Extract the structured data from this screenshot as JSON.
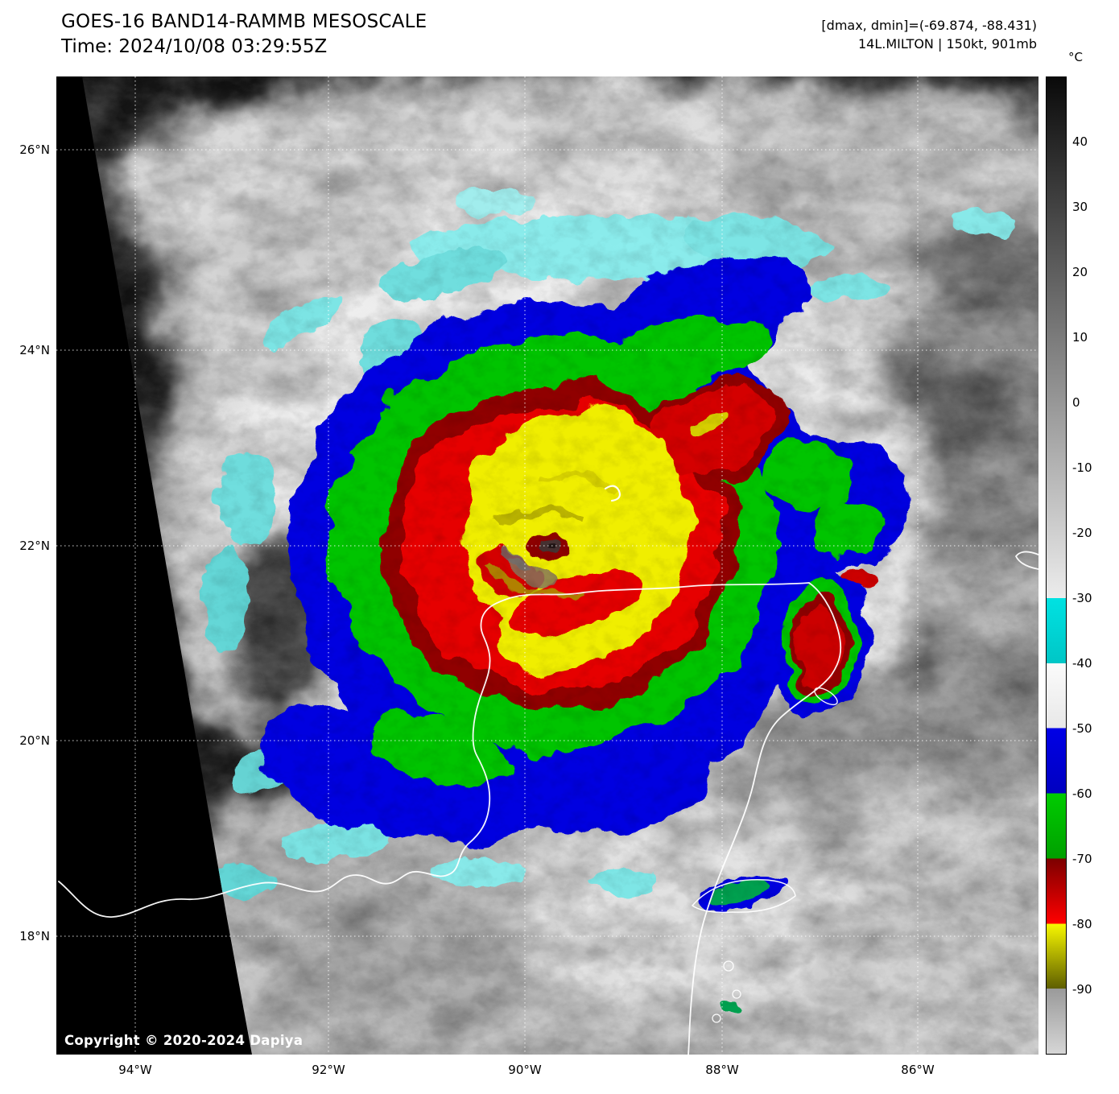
{
  "header": {
    "title": "GOES-16 BAND14-RAMMB MESOSCALE",
    "time_label": "Time: 2024/10/08 03:29:55Z",
    "dmax_dmin": "[dmax, dmin]=(-69.874, -88.431)",
    "storm_info": "14L.MILTON | 150kt, 901mb"
  },
  "map": {
    "lat_labels": [
      "26°N",
      "24°N",
      "22°N",
      "20°N",
      "18°N"
    ],
    "lon_labels": [
      "94°W",
      "92°W",
      "90°W",
      "88°W",
      "86°W"
    ],
    "copyright": "Copyright © 2020-2024 Dapiya"
  },
  "colorbar": {
    "unit": "°C",
    "range": [
      50,
      -100
    ],
    "ticks": [
      40,
      30,
      20,
      10,
      0,
      -10,
      -20,
      -30,
      -40,
      -50,
      -60,
      -70,
      -80,
      -90
    ],
    "segments": [
      {
        "from": 50,
        "to": -30,
        "color_top": "#0a0a0a",
        "color_bottom": "#ececec"
      },
      {
        "from": -30,
        "to": -40,
        "color_top": "#00e2e2",
        "color_bottom": "#00c6c6"
      },
      {
        "from": -40,
        "to": -50,
        "color_top": "#fbfbfb",
        "color_bottom": "#e8e8e8"
      },
      {
        "from": -50,
        "to": -60,
        "color_top": "#0000e6",
        "color_bottom": "#0000c0"
      },
      {
        "from": -60,
        "to": -70,
        "color_top": "#00cc00",
        "color_bottom": "#00a000"
      },
      {
        "from": -70,
        "to": -80,
        "color_top": "#7c0000",
        "color_bottom": "#ff0000"
      },
      {
        "from": -80,
        "to": -90,
        "color_top": "#f8f800",
        "color_bottom": "#5e5e00"
      },
      {
        "from": -90,
        "to": -100,
        "color_top": "#9a9a9a",
        "color_bottom": "#d6d6d6"
      }
    ],
    "enhancement_colors": {
      "cyan": "#00e2e2",
      "blue": "#0000e0",
      "green": "#00c400",
      "dark_red": "#8e0000",
      "red": "#e60000",
      "yellow": "#f0ee00"
    }
  }
}
